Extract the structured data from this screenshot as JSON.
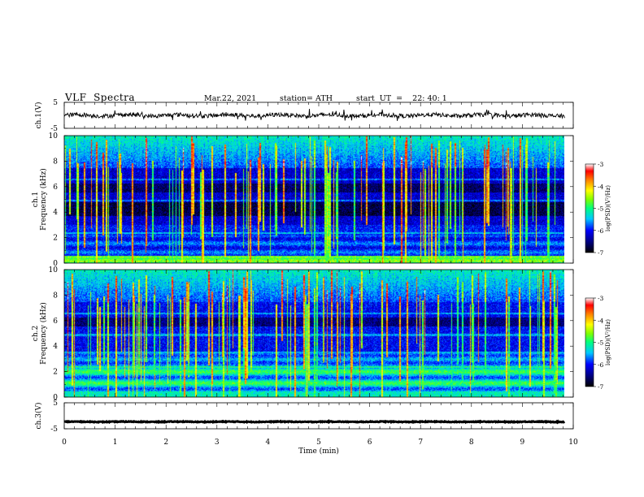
{
  "header": {
    "title": "VLF  Spectra",
    "date": "Mar.22, 2021",
    "station": "station= ATH",
    "start": "start  UT  =    22: 40: 1"
  },
  "chart_data": {
    "type": "heatmap",
    "xlabel": "Time  (min)",
    "xlim": [
      0,
      10
    ],
    "xticks": [
      "0",
      "1",
      "2",
      "3",
      "4",
      "5",
      "6",
      "7",
      "8",
      "9",
      "10"
    ],
    "panels": [
      {
        "id": "ch1-wave",
        "type": "line",
        "ylabel": "ch.1(V)",
        "ylim": [
          -5,
          5
        ],
        "yticks": [
          "5",
          "-5"
        ],
        "description_values": {
          "mean": 0,
          "amplitude": 0.8
        }
      },
      {
        "id": "ch1-spec",
        "type": "heatmap",
        "ylabel_top": "ch.1",
        "ylabel": "Frequency (kHz)",
        "ylim": [
          0,
          10
        ],
        "yticks": [
          "0",
          "2",
          "4",
          "6",
          "8",
          "10"
        ],
        "colorbar": {
          "label": "log(PSD)(V²/Hz)",
          "ticks": [
            "-3",
            "-4",
            "-5",
            "-6",
            "-7"
          ],
          "range": [
            -7,
            -3
          ]
        }
      },
      {
        "id": "ch2-spec",
        "type": "heatmap",
        "ylabel_top": "ch.2",
        "ylabel": "Frequency (kHz)",
        "ylim": [
          0,
          10
        ],
        "yticks": [
          "0",
          "2",
          "4",
          "6",
          "8",
          "10"
        ],
        "colorbar": {
          "label": "log(PSD)(V²/Hz)",
          "ticks": [
            "-3",
            "-4",
            "-5",
            "-6",
            "-7"
          ],
          "range": [
            -7,
            -3
          ]
        }
      },
      {
        "id": "ch3-wave",
        "type": "line",
        "ylabel": "ch.3(V)",
        "ylim": [
          -5,
          5
        ],
        "yticks": [
          "5",
          "-5"
        ],
        "description_values": {
          "mean": -2.3,
          "amplitude": 0.15
        }
      }
    ],
    "data_end_min": 9.83
  }
}
